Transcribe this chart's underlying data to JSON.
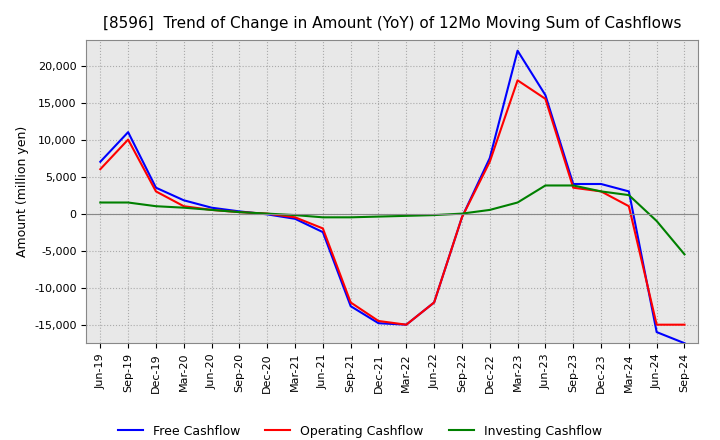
{
  "title": "[8596]  Trend of Change in Amount (YoY) of 12Mo Moving Sum of Cashflows",
  "ylabel": "Amount (million yen)",
  "x_labels": [
    "Jun-19",
    "Sep-19",
    "Dec-19",
    "Mar-20",
    "Jun-20",
    "Sep-20",
    "Dec-20",
    "Mar-21",
    "Jun-21",
    "Sep-21",
    "Dec-21",
    "Mar-22",
    "Jun-22",
    "Sep-22",
    "Dec-22",
    "Mar-23",
    "Jun-23",
    "Sep-23",
    "Dec-23",
    "Mar-24",
    "Jun-24",
    "Sep-24"
  ],
  "operating": [
    6000,
    10000,
    3000,
    1000,
    500,
    200,
    0,
    -500,
    -2000,
    -12000,
    -14500,
    -15000,
    -12000,
    -500,
    7000,
    18000,
    15500,
    3500,
    3000,
    1000,
    -15000,
    -15000
  ],
  "investing": [
    1500,
    1500,
    1000,
    800,
    500,
    200,
    0,
    -200,
    -500,
    -500,
    -400,
    -300,
    -200,
    0,
    500,
    1500,
    3800,
    3800,
    3000,
    2500,
    -1000,
    -5500
  ],
  "free": [
    7000,
    11000,
    3500,
    1800,
    800,
    300,
    -100,
    -700,
    -2500,
    -12500,
    -14800,
    -15000,
    -12000,
    -500,
    7500,
    22000,
    16000,
    4000,
    4000,
    3000,
    -16000,
    -17500
  ],
  "operating_color": "#ff0000",
  "investing_color": "#008000",
  "free_color": "#0000ff",
  "ylim": [
    -17500,
    23500
  ],
  "yticks": [
    -15000,
    -10000,
    -5000,
    0,
    5000,
    10000,
    15000,
    20000
  ],
  "grid_color": "#aaaaaa",
  "plot_bg_color": "#e8e8e8",
  "background_color": "#ffffff",
  "title_fontsize": 11,
  "tick_fontsize": 8,
  "legend_labels": [
    "Operating Cashflow",
    "Investing Cashflow",
    "Free Cashflow"
  ]
}
